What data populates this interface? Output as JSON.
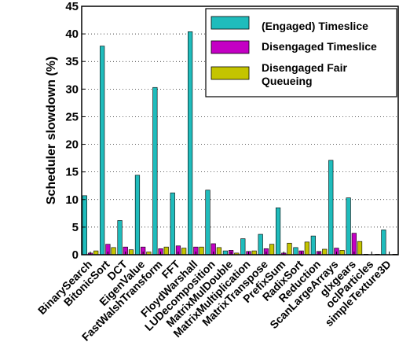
{
  "chart_data": {
    "type": "bar",
    "ylabel": "Scheduler slowdown (%)",
    "xlabel": "",
    "ylim": [
      0,
      45
    ],
    "yticks": [
      0,
      5,
      10,
      15,
      20,
      25,
      30,
      35,
      40,
      45
    ],
    "grid": "y-dotted",
    "legend_position": "top-right",
    "categories": [
      "BinarySearch",
      "BitonicSort",
      "DCT",
      "EigenValue",
      "FastWalshTransform",
      "FFT",
      "FloydWarshall",
      "LUDecomposition",
      "MatrixMulDouble",
      "MatrixMultiplication",
      "MatrixTranspose",
      "PrefixSum",
      "RadixSort",
      "Reduction",
      "ScanLargeArrays",
      "glxgears",
      "oclParticles",
      "simpleTexture3D"
    ],
    "series": [
      {
        "name": "(Engaged) Timeslice",
        "color": "#1fbcbc",
        "values": [
          10.7,
          37.8,
          6.2,
          14.4,
          30.3,
          11.2,
          40.4,
          11.7,
          0.7,
          2.9,
          3.7,
          8.5,
          1.3,
          3.4,
          17.1,
          10.3,
          0.1,
          4.5
        ]
      },
      {
        "name": "Disengaged Timeslice",
        "color": "#c400c4",
        "values": [
          0.3,
          1.9,
          1.4,
          1.4,
          1.1,
          1.6,
          1.4,
          2.0,
          0.8,
          0.6,
          1.1,
          0.3,
          0.7,
          0.6,
          1.2,
          3.9,
          0.0,
          0.0
        ]
      },
      {
        "name": "Disengaged Fair Queueing",
        "color": "#c4c400",
        "values": [
          0.7,
          1.3,
          0.9,
          0.5,
          1.4,
          1.2,
          1.4,
          1.3,
          0.3,
          0.7,
          1.9,
          2.1,
          2.3,
          1.0,
          0.8,
          2.4,
          0.1,
          0.1
        ]
      }
    ]
  }
}
